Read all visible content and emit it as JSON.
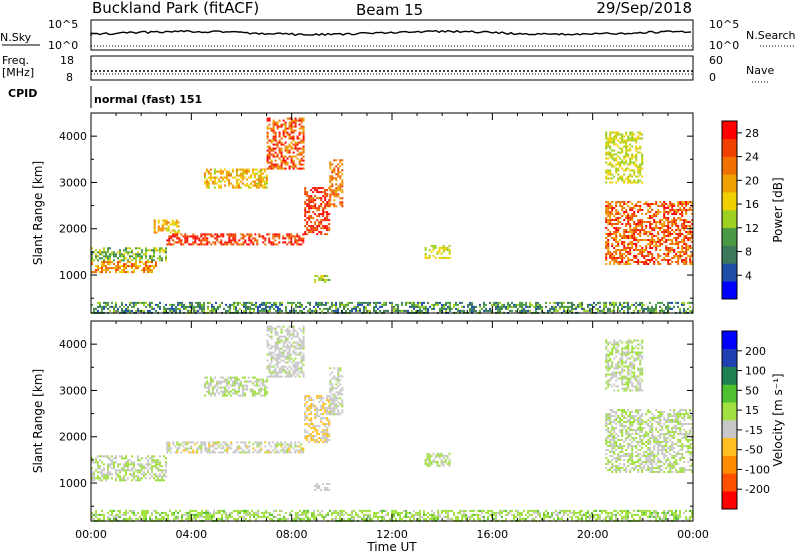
{
  "header": {
    "title": "Buckland Park (fitACF)",
    "beam": "Beam 15",
    "date": "29/Sep/2018"
  },
  "summary": {
    "nsky_label": "N.Sky",
    "nsearch_label": "N.Search",
    "noise_tick_top": "10^5",
    "noise_tick_bottom": "10^0",
    "freq_label_1": "Freq.",
    "freq_label_2": "[MHz]",
    "freq_ticks": [
      "18",
      "8"
    ],
    "nave_label": "Nave",
    "nave_ticks": [
      "60",
      "0"
    ],
    "cpid_label": "CPID",
    "cpid_text": "normal (fast) 151"
  },
  "x_axis": {
    "label": "Time UT",
    "ticks": [
      "00:00",
      "04:00",
      "08:00",
      "12:00",
      "16:00",
      "20:00",
      "00:00"
    ]
  },
  "colors": {
    "power": [
      "#0000ff",
      "#1f4fa8",
      "#3a7a5a",
      "#4a9a45",
      "#9dd020",
      "#f0d000",
      "#f0a000",
      "#f07000",
      "#f04000",
      "#ff0000"
    ],
    "velocity": [
      "#ff0000",
      "#ff5000",
      "#ff8c00",
      "#ffc020",
      "#c8c8c8",
      "#a0e040",
      "#50c030",
      "#208050",
      "#2040b0",
      "#0000ff"
    ]
  },
  "chart_data": [
    {
      "type": "heatmap",
      "name_panel": "power",
      "ylabel": "Slant Range [km]",
      "yticks": [
        1000,
        2000,
        3000,
        4000
      ],
      "ylim": [
        180,
        4500
      ],
      "xlim": [
        0,
        24
      ],
      "colorbar": {
        "label": "Power [dB]",
        "ticks": [
          "4",
          "8",
          "12",
          "16",
          "20",
          "24",
          "28"
        ],
        "range": [
          0,
          30
        ]
      },
      "regions": [
        {
          "t0": 0.0,
          "t1": 24.0,
          "r0": 200,
          "r1": 420,
          "v0": 4,
          "v1": 14
        },
        {
          "t0": 0.0,
          "t1": 2.6,
          "r0": 1050,
          "r1": 1300,
          "v0": 16,
          "v1": 26
        },
        {
          "t0": 0.0,
          "t1": 3.0,
          "r0": 1300,
          "r1": 1600,
          "v0": 8,
          "v1": 16
        },
        {
          "t0": 3.0,
          "t1": 8.5,
          "r0": 1650,
          "r1": 1900,
          "v0": 22,
          "v1": 30
        },
        {
          "t0": 2.5,
          "t1": 3.5,
          "r0": 1900,
          "r1": 2200,
          "v0": 14,
          "v1": 22
        },
        {
          "t0": 8.5,
          "t1": 9.5,
          "r0": 1900,
          "r1": 2900,
          "v0": 22,
          "v1": 30
        },
        {
          "t0": 9.5,
          "t1": 10.0,
          "r0": 2500,
          "r1": 3500,
          "v0": 18,
          "v1": 26
        },
        {
          "t0": 4.5,
          "t1": 7.0,
          "r0": 2900,
          "r1": 3300,
          "v0": 14,
          "v1": 22
        },
        {
          "t0": 7.0,
          "t1": 8.5,
          "r0": 3300,
          "r1": 4400,
          "v0": 18,
          "v1": 30
        },
        {
          "t0": 8.9,
          "t1": 9.5,
          "r0": 850,
          "r1": 1000,
          "v0": 10,
          "v1": 16
        },
        {
          "t0": 13.3,
          "t1": 14.3,
          "r0": 1350,
          "r1": 1650,
          "v0": 12,
          "v1": 18
        },
        {
          "t0": 20.5,
          "t1": 24.0,
          "r0": 1250,
          "r1": 2600,
          "v0": 18,
          "v1": 30
        },
        {
          "t0": 20.5,
          "t1": 22.0,
          "r0": 3000,
          "r1": 4100,
          "v0": 12,
          "v1": 18
        }
      ]
    },
    {
      "type": "heatmap",
      "name_panel": "velocity",
      "ylabel": "Slant Range [km]",
      "yticks": [
        1000,
        2000,
        3000,
        4000
      ],
      "ylim": [
        180,
        4500
      ],
      "xlim": [
        0,
        24
      ],
      "colorbar": {
        "label": "Velocity [m s⁻¹]",
        "ticks": [
          "200",
          "100",
          "50",
          "15",
          "-15",
          "-50",
          "-100",
          "-200"
        ],
        "range": [
          -250,
          250
        ]
      },
      "regions": [
        {
          "t0": 0.0,
          "t1": 24.0,
          "r0": 200,
          "r1": 420,
          "v0": -15,
          "v1": 60
        },
        {
          "t0": 0.0,
          "t1": 3.0,
          "r0": 1050,
          "r1": 1600,
          "v0": -14,
          "v1": 14
        },
        {
          "t0": 3.0,
          "t1": 8.5,
          "r0": 1650,
          "r1": 1900,
          "v0": -60,
          "v1": 10
        },
        {
          "t0": 8.5,
          "t1": 9.5,
          "r0": 1900,
          "r1": 2900,
          "v0": -80,
          "v1": -15
        },
        {
          "t0": 9.5,
          "t1": 10.0,
          "r0": 2500,
          "r1": 3500,
          "v0": -50,
          "v1": 10
        },
        {
          "t0": 4.5,
          "t1": 7.0,
          "r0": 2900,
          "r1": 3300,
          "v0": -14,
          "v1": 14
        },
        {
          "t0": 7.0,
          "t1": 8.5,
          "r0": 3300,
          "r1": 4400,
          "v0": -50,
          "v1": 10
        },
        {
          "t0": 8.9,
          "t1": 9.5,
          "r0": 850,
          "r1": 1000,
          "v0": -40,
          "v1": 0
        },
        {
          "t0": 13.3,
          "t1": 14.3,
          "r0": 1350,
          "r1": 1650,
          "v0": -14,
          "v1": 14
        },
        {
          "t0": 20.5,
          "t1": 24.0,
          "r0": 1250,
          "r1": 2600,
          "v0": -14,
          "v1": 14
        },
        {
          "t0": 20.5,
          "t1": 22.0,
          "r0": 3000,
          "r1": 4100,
          "v0": -14,
          "v1": 14
        }
      ]
    }
  ]
}
